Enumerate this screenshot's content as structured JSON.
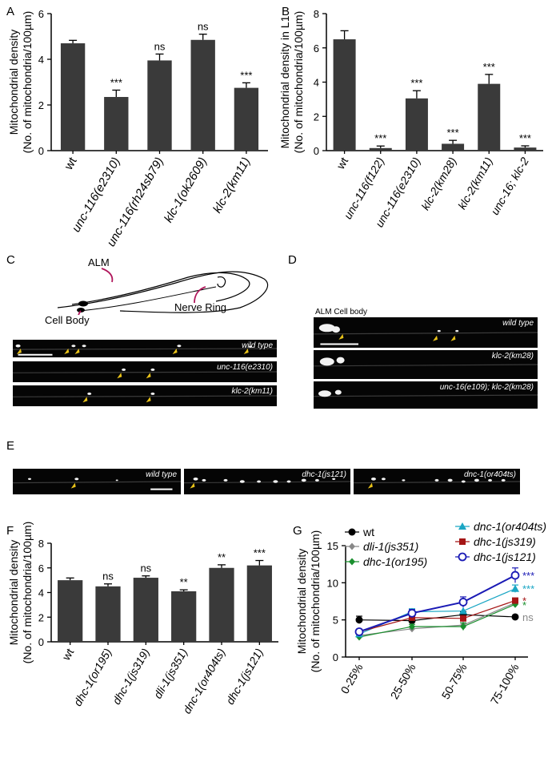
{
  "panels": {
    "A": {
      "label": "A"
    },
    "B": {
      "label": "B"
    },
    "C": {
      "label": "C"
    },
    "D": {
      "label": "D"
    },
    "E": {
      "label": "E"
    },
    "F": {
      "label": "F"
    },
    "G": {
      "label": "G"
    }
  },
  "chart_data": [
    {
      "id": "A",
      "type": "bar",
      "categories": [
        "wt",
        "unc-116(e2310)",
        "unc-116(rh24sb79)",
        "klc-1(ok2609)",
        "klc-2(km11)"
      ],
      "italic": [
        false,
        true,
        true,
        true,
        true
      ],
      "values": [
        4.7,
        2.35,
        3.95,
        4.85,
        2.75
      ],
      "errors": [
        0.13,
        0.3,
        0.28,
        0.25,
        0.22
      ],
      "significance": [
        "",
        "***",
        "ns",
        "ns",
        "***"
      ],
      "ylabel": [
        "Mitochondrial density",
        "(No. of mitochondria/100µm)"
      ],
      "ylim": [
        0,
        6
      ],
      "yticks": [
        0,
        2,
        4,
        6
      ]
    },
    {
      "id": "B",
      "type": "bar",
      "categories": [
        "wt",
        "unc-116(f122)",
        "unc-116(e2310)",
        "klc-2(km28)",
        "klc-2(km11)",
        "unc-16; klc-2"
      ],
      "italic": [
        false,
        true,
        true,
        true,
        true,
        true
      ],
      "values": [
        6.5,
        0.15,
        3.05,
        0.4,
        3.9,
        0.18
      ],
      "errors": [
        0.5,
        0.12,
        0.45,
        0.2,
        0.55,
        0.1
      ],
      "significance": [
        "",
        "***",
        "***",
        "***",
        "***",
        "***"
      ],
      "ylabel": [
        "Mitochondrial density in L1",
        "(No. of mitochondria/100µm)"
      ],
      "ylim": [
        0,
        8
      ],
      "yticks": [
        0,
        2,
        4,
        6,
        8
      ]
    },
    {
      "id": "F",
      "type": "bar",
      "categories": [
        "wt",
        "dhc-1(or195)",
        "dhc-1(js319)",
        "dli-1(js351)",
        "dnc-1(or404ts)",
        "dhc-1(js121)"
      ],
      "italic": [
        false,
        true,
        true,
        true,
        true,
        true
      ],
      "values": [
        5.0,
        4.5,
        5.2,
        4.1,
        6.0,
        6.2
      ],
      "errors": [
        0.18,
        0.2,
        0.15,
        0.12,
        0.25,
        0.4
      ],
      "significance": [
        "",
        "ns",
        "ns",
        "**",
        "**",
        "***"
      ],
      "ylabel": [
        "Mitochondrial density",
        "(No. of mitochondria/100µm)"
      ],
      "ylim": [
        0,
        8
      ],
      "yticks": [
        0,
        2,
        4,
        6,
        8
      ]
    },
    {
      "id": "G",
      "type": "line",
      "categories": [
        "0-25%",
        "25-50%",
        "50-75%",
        "75-100%"
      ],
      "ylabel": [
        "Mitochondrial density",
        "(No. of mitochondria/100µm)"
      ],
      "ylim": [
        0,
        15
      ],
      "yticks": [
        0,
        5,
        10,
        15
      ],
      "series": [
        {
          "name": "wt",
          "color": "#000000",
          "marker": "circle",
          "values": [
            5.0,
            4.9,
            5.7,
            5.4
          ],
          "errors": [
            0.5,
            0.4,
            0.4,
            0
          ],
          "sig": "ns",
          "sigcolor": "#888888"
        },
        {
          "name": "dli-1(js351)",
          "color": "#888888",
          "marker": "diamond",
          "values": [
            2.9,
            3.8,
            4.3,
            7.3
          ],
          "errors": [
            0,
            0,
            0,
            0
          ],
          "sig": "",
          "sigcolor": "#888888"
        },
        {
          "name": "dhc-1(or195)",
          "color": "#1a8f2e",
          "marker": "diamond",
          "values": [
            2.7,
            4.1,
            4.1,
            7.1
          ],
          "errors": [
            0,
            0.3,
            0.5,
            0
          ],
          "sig": "*",
          "sigcolor": "#1a8f2e"
        },
        {
          "name": "dnc-1(or404ts)",
          "color": "#1aa6c4",
          "marker": "triangle",
          "values": [
            3.1,
            6.1,
            6.2,
            9.2
          ],
          "errors": [
            0,
            0.4,
            0,
            0.5
          ],
          "sig": "***",
          "sigcolor": "#1aa6c4"
        },
        {
          "name": "dhc-1(js319)",
          "color": "#a51515",
          "marker": "square",
          "values": [
            3.4,
            5.3,
            5.2,
            7.6
          ],
          "errors": [
            0,
            0,
            0,
            0
          ],
          "sig": "*",
          "sigcolor": "#a51515"
        },
        {
          "name": "dhc-1(js121)",
          "color": "#1a1ab5",
          "marker": "open-circle",
          "values": [
            3.4,
            5.9,
            7.4,
            11.0
          ],
          "errors": [
            0.3,
            0.5,
            0.7,
            1.0
          ],
          "sig": "***",
          "sigcolor": "#1a1ab5"
        }
      ]
    }
  ],
  "panel_c": {
    "diagram": {
      "alm": "ALM",
      "nerve_ring": "Nerve Ring",
      "cell_body": "Cell Body"
    },
    "strips": [
      "wild type",
      "unc-116(e2310)",
      "klc-2(km11)"
    ]
  },
  "panel_d": {
    "title": "ALM Cell body",
    "strips": [
      "wild type",
      "klc-2(km28)",
      "unc-16(e109); klc-2(km28)"
    ]
  },
  "panel_e": {
    "strips": [
      "wild type",
      "dhc-1(js121)",
      "dnc-1(or404ts)"
    ]
  }
}
